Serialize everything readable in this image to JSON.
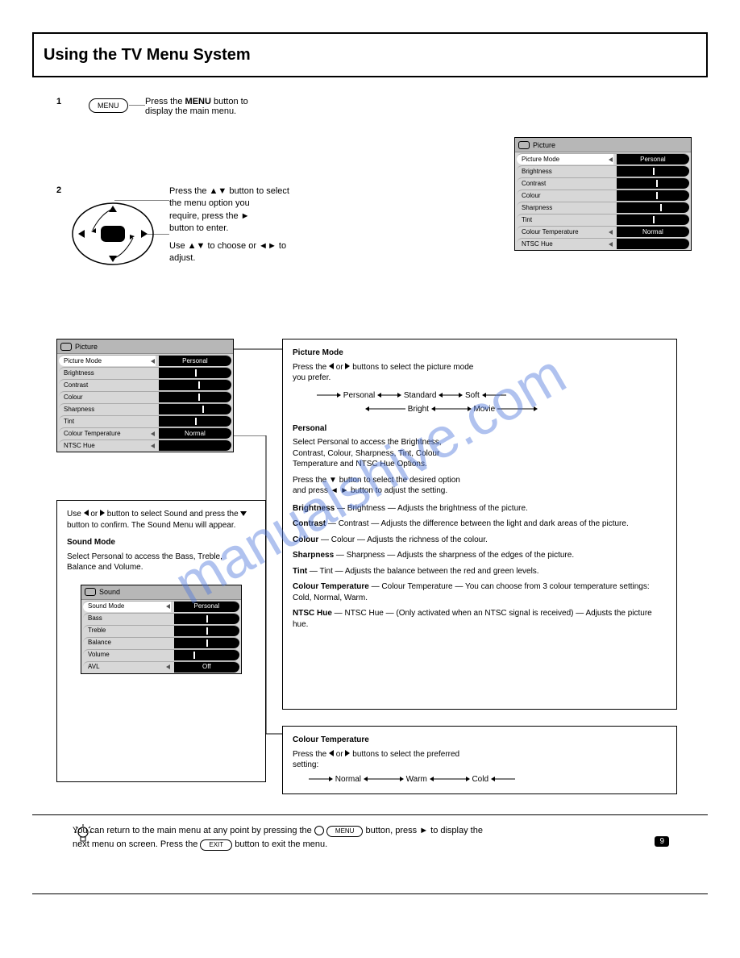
{
  "title": "Using the TV Menu System",
  "step1": {
    "label": "1",
    "text1": "Press the ",
    "btn": "MENU",
    "text2": " button to",
    "text3": "display the main menu."
  },
  "step2": {
    "label": "2",
    "line1_a": "Press the ",
    "line1_b": " button to select",
    "line2": "the menu option you",
    "line3_a": "require, press the ",
    "line3_b": "button to enter.",
    "line4_a": "Use ",
    "line4_b": " to choose or",
    "line4_c": " to",
    "line5": "adjust."
  },
  "osd_main": {
    "header": "Picture",
    "rows": [
      {
        "label": "Picture Mode",
        "val": "Personal",
        "hl": true
      },
      {
        "label": "Brightness",
        "slider": 50
      },
      {
        "label": "Contrast",
        "slider": 55
      },
      {
        "label": "Colour",
        "slider": 55
      },
      {
        "label": "Sharpness",
        "slider": 60
      },
      {
        "label": "Tint",
        "slider": 50
      },
      {
        "label": "Colour Temperature",
        "val": "Normal"
      },
      {
        "label": "NTSC Hue",
        "val": ""
      }
    ]
  },
  "osd_personal": {
    "header": "Picture",
    "rows": [
      {
        "label": "Picture Mode",
        "val": "Personal",
        "hl": true
      },
      {
        "label": "Brightness",
        "slider": 50
      },
      {
        "label": "Contrast",
        "slider": 55
      },
      {
        "label": "Colour",
        "slider": 55
      },
      {
        "label": "Sharpness",
        "slider": 60
      },
      {
        "label": "Tint",
        "slider": 50
      },
      {
        "label": "Colour Temperature",
        "val": "Normal"
      },
      {
        "label": "NTSC Hue",
        "val": ""
      }
    ]
  },
  "osd_sound": {
    "header": "Sound",
    "rows": [
      {
        "label": "Sound Mode",
        "val": "Personal",
        "hl": true
      },
      {
        "label": "Bass",
        "slider": 50
      },
      {
        "label": "Treble",
        "slider": 50
      },
      {
        "label": "Balance",
        "slider": 50
      },
      {
        "label": "Volume",
        "slider": 30
      },
      {
        "label": "AVL",
        "val": "Off"
      }
    ]
  },
  "callout_pmode": {
    "hd": "Picture Mode",
    "l1a": "Press the ",
    "l1b": " buttons to select the picture mode",
    "l2": "you prefer.",
    "seq1": [
      "Personal",
      "Standard",
      "Soft"
    ],
    "seq2": [
      "Bright",
      "Movie"
    ],
    "personal_hd": "Personal",
    "p1": "Select Personal to access the Brightness,",
    "p2": "Contrast, Colour, Sharpness, Tint, Colour",
    "p3": "Temperature and NTSC Hue Options.",
    "p4a": "Press the ",
    "p4b": " button to select the desired option",
    "p5a": "and press ",
    "p5b": " button to adjust the setting.",
    "brightness": "Brightness — Adjusts the brightness of the picture.",
    "contrast": "Contrast — Adjusts the difference between the light and dark areas of the picture.",
    "colour": "Colour — Adjusts the richness of the colour.",
    "sharpness": "Sharpness — Adjusts the sharpness of the edges of the picture.",
    "tint": "Tint — Adjusts the balance between the red and green levels.",
    "ctemp": "Colour Temperature — You can choose from 3 colour temperature settings: Cold, Normal, Warm.",
    "hue": "NTSC Hue — (Only activated when an NTSC signal is received) — Adjusts the picture hue."
  },
  "callout_personal": {
    "l1a": "Use ",
    "l1b": " button to select Sound and press the ",
    "l2": "button to confirm. The Sound Menu will appear.",
    "smode_hd": "Sound Mode",
    "s1": "Select Personal to access the Bass, Treble,",
    "s2": "Balance and Volume."
  },
  "callout_ctemp": {
    "hd": "Colour Temperature",
    "l1a": "Press the ",
    "l1b": " buttons to select the preferred",
    "l2": "setting:",
    "seq": [
      "Normal",
      "Warm",
      "Cold"
    ]
  },
  "footer": {
    "l1a": "You can return to the main menu at any point by pressing the ",
    "l1b": "MENU",
    "l1c": " button, press ",
    "l1d": " to display the",
    "l2a": "next menu on screen. Press the ",
    "l2b": "EXIT",
    "l2c": " button to exit the menu."
  },
  "page": "9"
}
